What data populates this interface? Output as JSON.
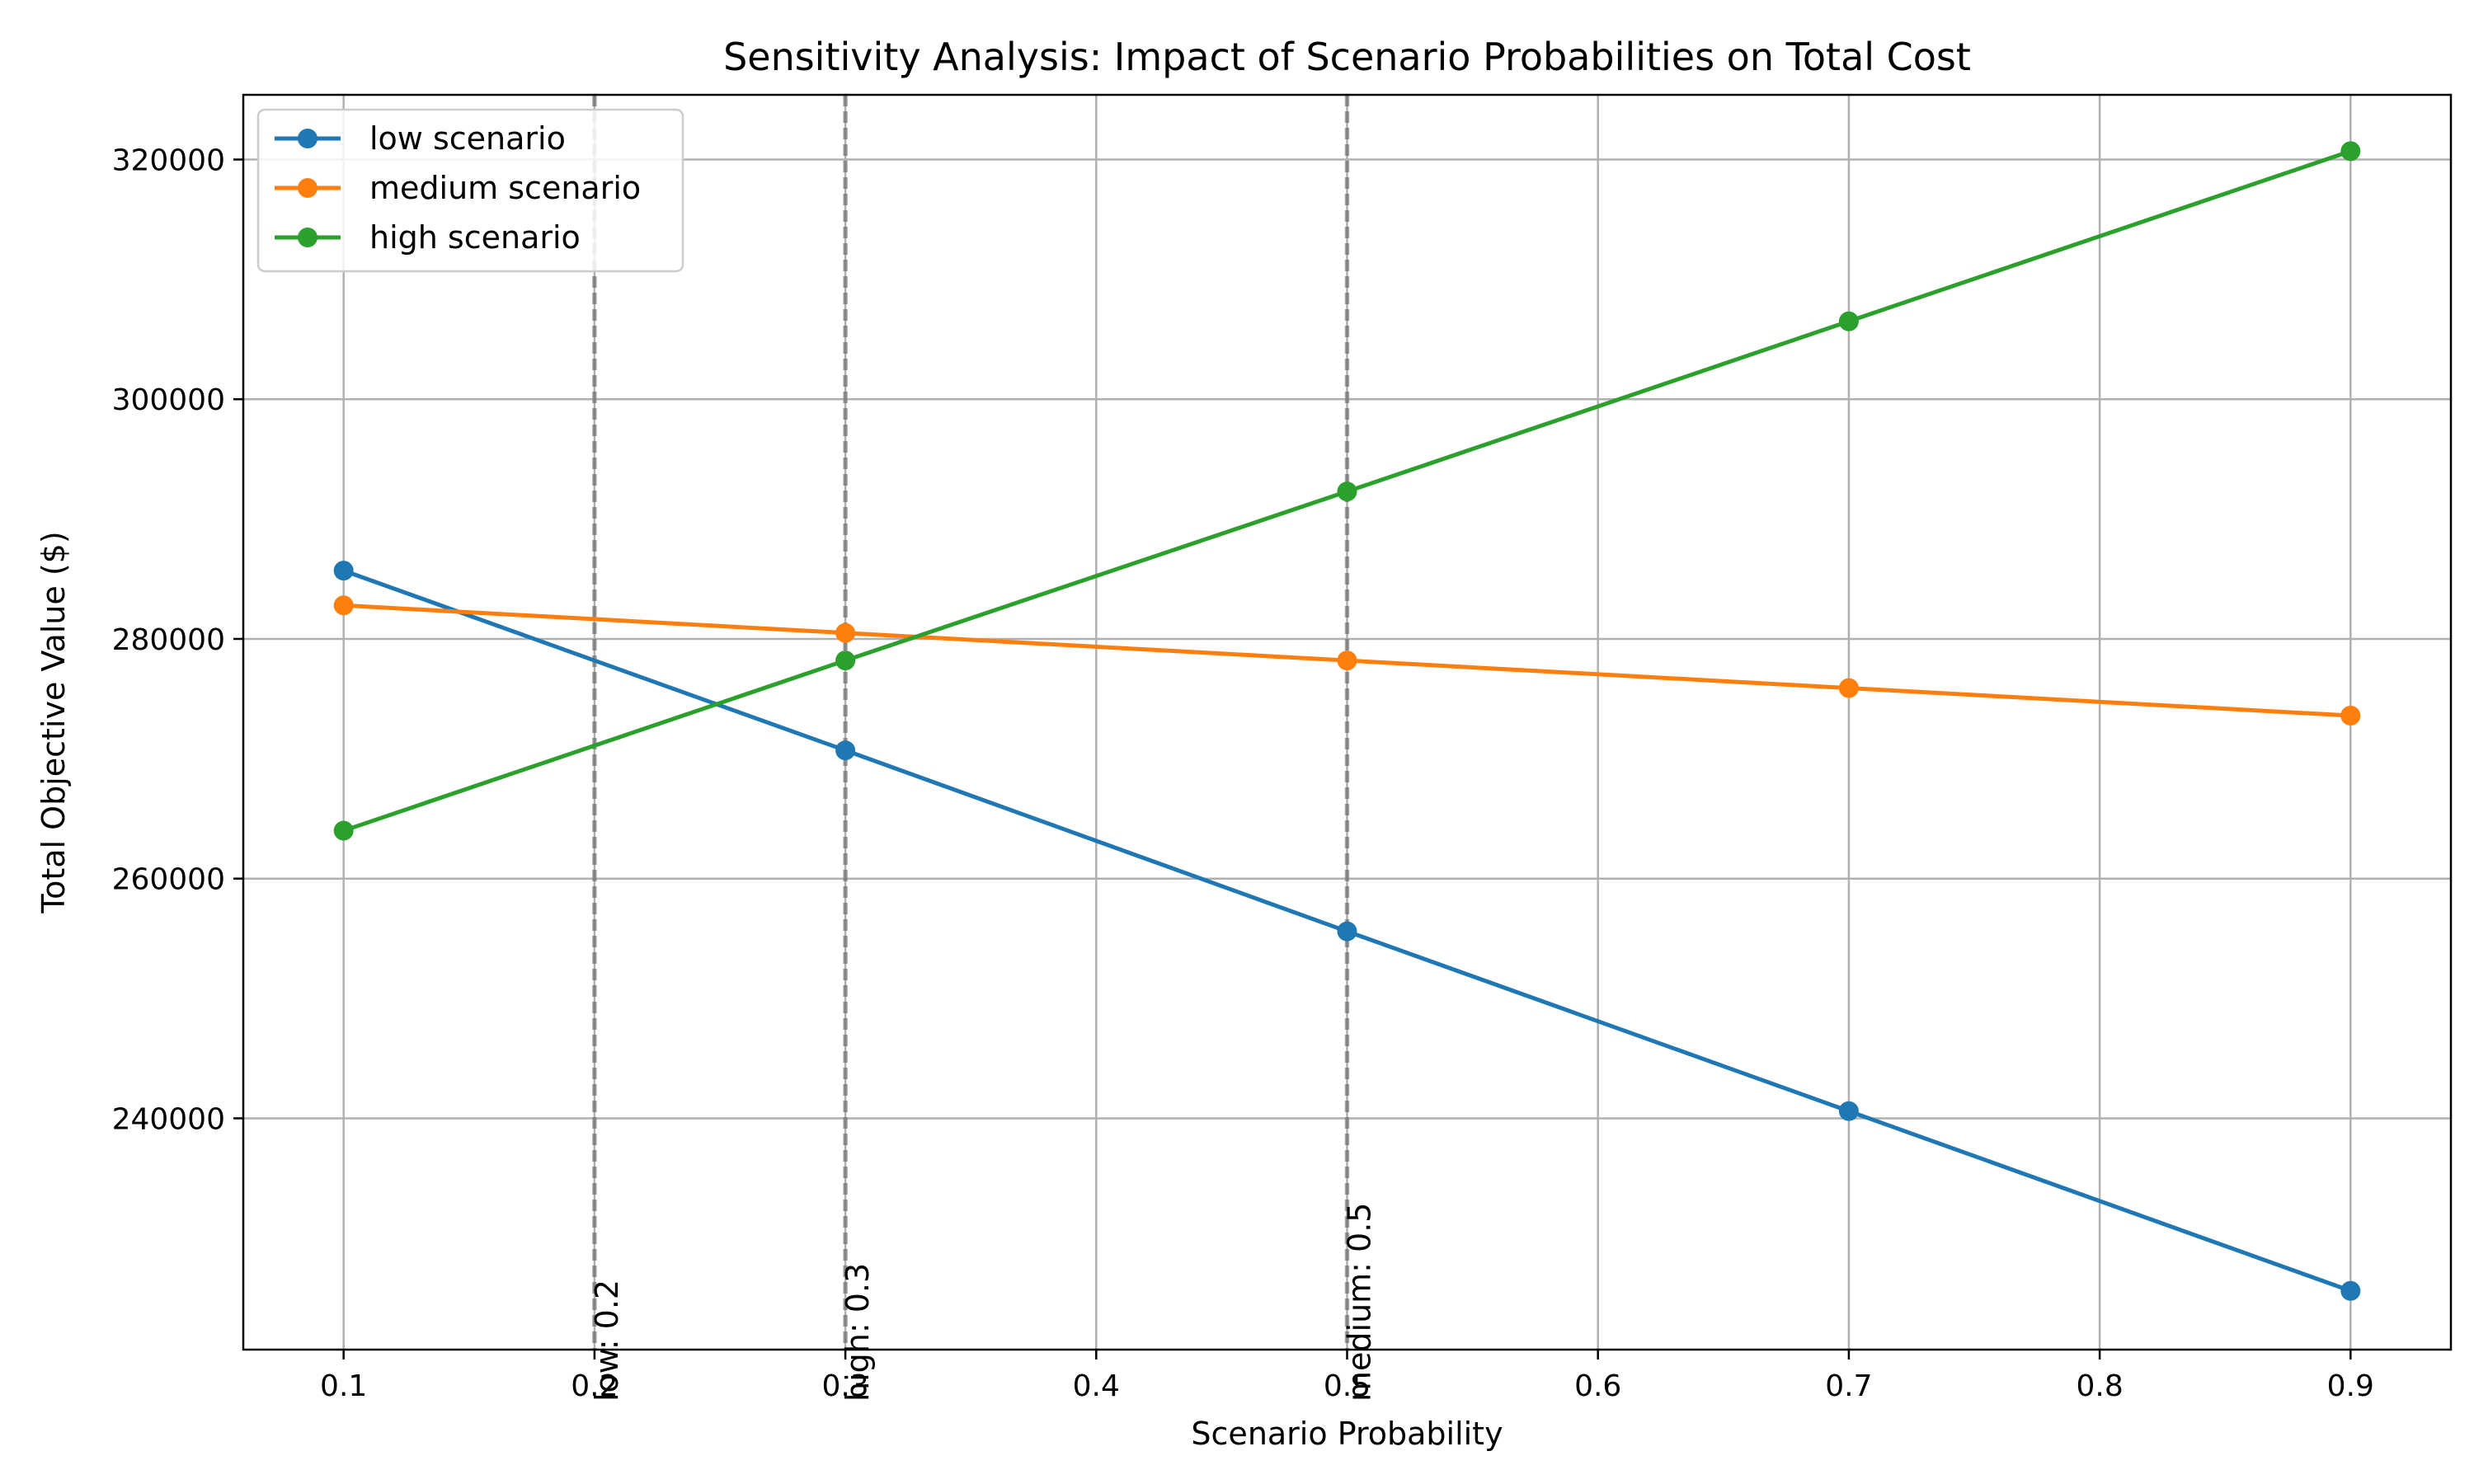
{
  "chart_data": {
    "type": "line",
    "title": "Sensitivity Analysis: Impact of Scenario Probabilities on Total Cost",
    "xlabel": "Scenario Probability",
    "ylabel": "Total Objective Value ($)",
    "x": [
      0.1,
      0.3,
      0.5,
      0.7,
      0.9
    ],
    "xlim": [
      0.06,
      0.94
    ],
    "ylim": [
      220700,
      325400
    ],
    "xticks": [
      0.1,
      0.2,
      0.3,
      0.4,
      0.5,
      0.6,
      0.7,
      0.8,
      0.9
    ],
    "xtick_labels": [
      "0.1",
      "0.2",
      "0.3",
      "0.4",
      "0.5",
      "0.6",
      "0.7",
      "0.8",
      "0.9"
    ],
    "yticks": [
      240000,
      260000,
      280000,
      300000,
      320000
    ],
    "ytick_labels": [
      "240000",
      "260000",
      "280000",
      "300000",
      "320000"
    ],
    "grid": true,
    "legend_position": "top-left",
    "series": [
      {
        "name": "low scenario",
        "color": "#1f77b4",
        "values": [
          285700,
          270700,
          255600,
          240600,
          225600
        ]
      },
      {
        "name": "medium scenario",
        "color": "#ff7f0e",
        "values": [
          282800,
          280500,
          278200,
          275900,
          273600
        ]
      },
      {
        "name": "high scenario",
        "color": "#2ca02c",
        "values": [
          264000,
          278200,
          292300,
          306500,
          320700
        ]
      }
    ],
    "reference_lines": [
      {
        "x": 0.2,
        "label": "low: 0.2"
      },
      {
        "x": 0.3,
        "label": "high: 0.3"
      },
      {
        "x": 0.5,
        "label": "medium: 0.5"
      }
    ]
  }
}
